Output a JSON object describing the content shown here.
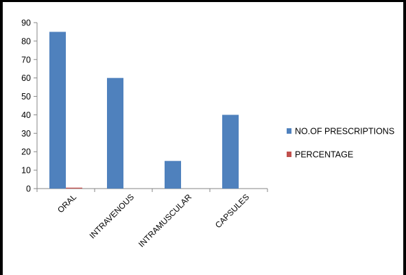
{
  "chart_data": {
    "type": "bar",
    "title": "",
    "xlabel": "",
    "ylabel": "",
    "categories": [
      "ORAL",
      "INTRAVENOUS",
      "INTRAMUSCULAR",
      "CAPSULES"
    ],
    "series": [
      {
        "name": "NO.OF PRESCRIPTIONS",
        "values": [
          85,
          60,
          15,
          40
        ],
        "color": "#4f81bd"
      },
      {
        "name": "PERCENTAGE",
        "values": [
          0.5,
          0,
          0,
          0
        ],
        "color": "#c0504d"
      }
    ],
    "ylim": [
      0,
      90
    ],
    "yticks": [
      0,
      10,
      20,
      30,
      40,
      50,
      60,
      70,
      80,
      90
    ],
    "grid": false,
    "legend": "right"
  }
}
